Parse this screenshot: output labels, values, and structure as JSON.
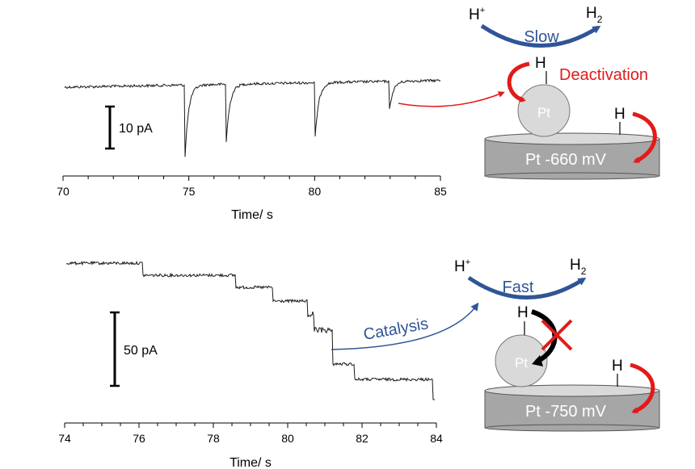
{
  "top_panel": {
    "scale_bar": "10 pA",
    "x_ticks": [
      "70",
      "75",
      "80",
      "85"
    ],
    "x_label": "Time/ s",
    "x_range": [
      70,
      85
    ],
    "spike_times": [
      74.8,
      76.45,
      80.0,
      82.95
    ]
  },
  "bottom_panel": {
    "scale_bar": "50 pA",
    "x_ticks": [
      "74",
      "76",
      "78",
      "80",
      "82",
      "84"
    ],
    "x_label": "Time/ s",
    "x_range": [
      74,
      84
    ],
    "step_times": [
      76.1,
      78.6,
      79.6,
      80.7,
      81.2,
      81.8
    ]
  },
  "top_scheme": {
    "reactant": "H",
    "reactant_sup": "+",
    "product": "H",
    "product_sub": "2",
    "rate": "Slow",
    "adsorbed_h": "H",
    "particle": "Pt",
    "process": "Deactivation",
    "electrode_h": "H",
    "electrode": "Pt -660 mV"
  },
  "bottom_scheme": {
    "reactant": "H",
    "reactant_sup": "+",
    "product": "H",
    "product_sub": "2",
    "rate": "Fast",
    "adsorbed_h": "H",
    "particle": "Pt",
    "process": "Catalysis",
    "electrode_h": "H",
    "electrode": "Pt -750 mV"
  },
  "colors": {
    "trace": "#1a1a1a",
    "blue_arrow": "#2f5597",
    "red_arrow": "#e31a1a",
    "particle": "#d9d9d9",
    "electrode": "#a6a6a6"
  }
}
